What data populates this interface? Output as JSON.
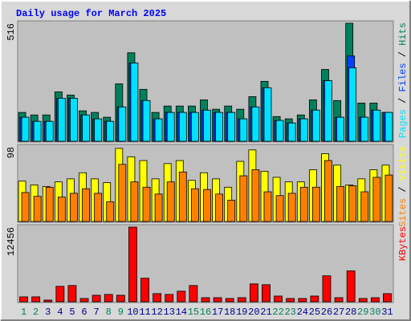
{
  "chart_data": {
    "type": "bar",
    "title": "Daily usage for March 2025",
    "categories": [
      "1",
      "2",
      "3",
      "4",
      "5",
      "6",
      "7",
      "8",
      "9",
      "10",
      "11",
      "12",
      "13",
      "14",
      "15",
      "16",
      "17",
      "18",
      "19",
      "20",
      "21",
      "22",
      "23",
      "24",
      "25",
      "26",
      "27",
      "28",
      "29",
      "30",
      "31"
    ],
    "label_color": "#00008b",
    "highlight_categories": [
      "1",
      "2",
      "8",
      "9",
      "15",
      "16",
      "22",
      "23",
      "29",
      "30"
    ],
    "highlight_color": "#00805c",
    "legend_separator": " / ",
    "panels": [
      {
        "ylim": [
          0,
          516
        ],
        "yticks": [
          516
        ],
        "series": [
          {
            "name": "Hits",
            "color": "#00805c",
            "values": [
              126,
              115,
              115,
              216,
              202,
              133,
              126,
              105,
              251,
              387,
              227,
              126,
              154,
              154,
              154,
              181,
              140,
              154,
              140,
              195,
              262,
              108,
              98,
              115,
              181,
              314,
              178,
              516,
              167,
              167,
              126
            ]
          },
          {
            "name": "Files",
            "color": "#0040ff",
            "values": [
              105,
              87,
              87,
              188,
              188,
              115,
              98,
              87,
              150,
              342,
              178,
              98,
              126,
              126,
              126,
              136,
              126,
              126,
              98,
              150,
              234,
              91,
              80,
              98,
              136,
              265,
              105,
              373,
              105,
              136,
              126
            ]
          },
          {
            "name": "Pages",
            "color": "#00e0ff",
            "values": [
              105,
              87,
              87,
              188,
              188,
              115,
              98,
              87,
              150,
              342,
              178,
              98,
              126,
              126,
              126,
              136,
              126,
              126,
              98,
              150,
              234,
              91,
              80,
              98,
              136,
              265,
              105,
              321,
              105,
              136,
              126
            ]
          }
        ]
      },
      {
        "ylim": [
          0,
          98
        ],
        "yticks": [
          98
        ],
        "series": [
          {
            "name": "Visits",
            "color": "#ffff00",
            "values": [
              53,
              48,
              46,
              52,
              56,
              64,
              56,
              51,
              96,
              85,
              80,
              56,
              76,
              80,
              54,
              64,
              56,
              45,
              79,
              94,
              66,
              58,
              52,
              52,
              68,
              89,
              74,
              48,
              56,
              68,
              74
            ]
          },
          {
            "name": "Sites",
            "color": "#ff8000",
            "values": [
              38,
              33,
              45,
              32,
              37,
              43,
              37,
              26,
              75,
              52,
              45,
              36,
              52,
              65,
              43,
              42,
              36,
              28,
              60,
              68,
              39,
              34,
              37,
              45,
              45,
              80,
              46,
              47,
              39,
              58,
              61
            ]
          }
        ]
      },
      {
        "ylim": [
          0,
          12456
        ],
        "yticks": [
          12456
        ],
        "series": [
          {
            "name": "KBytes",
            "color": "#ff0000",
            "values": [
              812,
              812,
              271,
              2572,
              2708,
              542,
              1083,
              1219,
              1083,
              12456,
              3926,
              1354,
              1219,
              1760,
              2708,
              677,
              677,
              542,
              677,
              2979,
              2843,
              948,
              542,
              542,
              948,
              4332,
              677,
              5145,
              542,
              677,
              1354
            ]
          }
        ]
      }
    ]
  }
}
